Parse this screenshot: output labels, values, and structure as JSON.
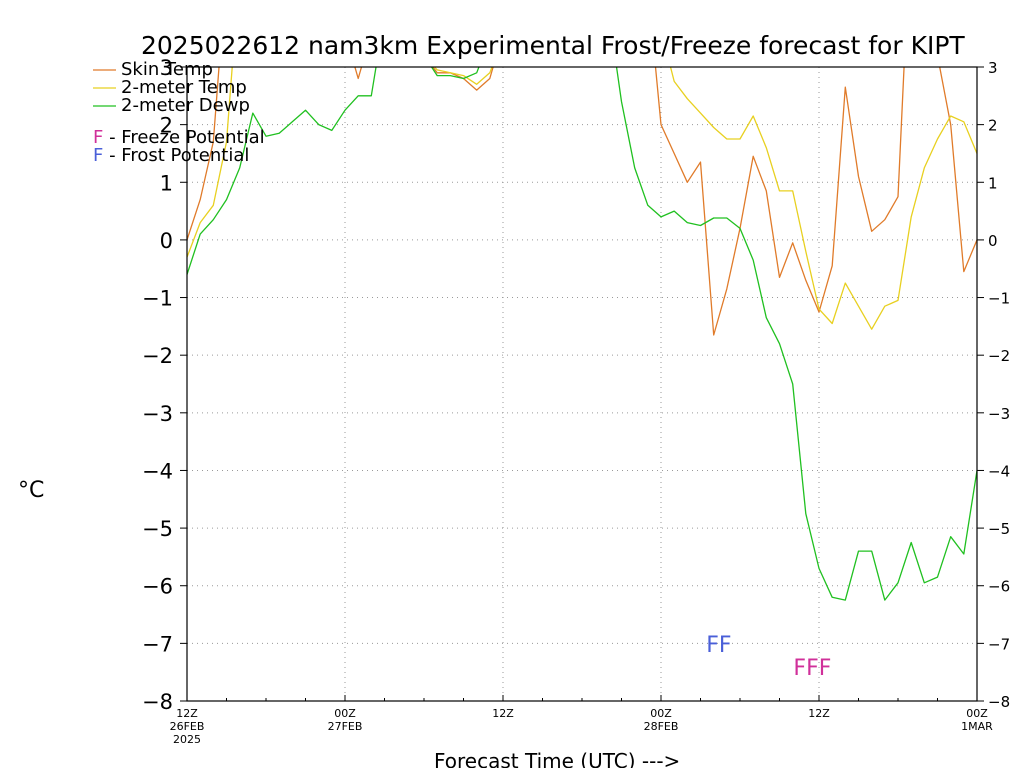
{
  "chart_data": {
    "type": "line",
    "title": "2025022612 nam3km Experimental Frost/Freeze forecast for KIPT",
    "xlabel": "Forecast Time (UTC) --->",
    "ylabel": "°C",
    "ylim": [
      -8,
      3
    ],
    "y_ticks": [
      -8,
      -7,
      -6,
      -5,
      -4,
      -3,
      -2,
      -1,
      0,
      1,
      2,
      3
    ],
    "y_tick_labels": [
      "−8",
      "−7",
      "−6",
      "−5",
      "−4",
      "−3",
      "−2",
      "−1",
      "0",
      "1",
      "2",
      "3"
    ],
    "xlim": [
      0,
      60
    ],
    "x_unit": "forecast hour",
    "x_ticks": [
      {
        "x": 0,
        "lines": [
          "12Z",
          "26FEB",
          "2025"
        ]
      },
      {
        "x": 12,
        "lines": [
          "00Z",
          "27FEB"
        ]
      },
      {
        "x": 24,
        "lines": [
          "12Z"
        ]
      },
      {
        "x": 36,
        "lines": [
          "00Z",
          "28FEB"
        ]
      },
      {
        "x": 48,
        "lines": [
          "12Z"
        ]
      },
      {
        "x": 60,
        "lines": [
          "00Z",
          "1MAR"
        ]
      }
    ],
    "grid": true,
    "legend_position": "top-left",
    "series": [
      {
        "name": "Skin Temp",
        "color": "#e07b2a",
        "points": [
          [
            0,
            0
          ],
          [
            1,
            0.7
          ],
          [
            2,
            1.7
          ],
          [
            2.5,
            3.2
          ],
          [
            12.5,
            3.2
          ],
          [
            13,
            2.8
          ],
          [
            13.5,
            3.2
          ],
          [
            18,
            3.2
          ],
          [
            19,
            2.9
          ],
          [
            20,
            2.9
          ],
          [
            21,
            2.8
          ],
          [
            22,
            2.6
          ],
          [
            23,
            2.8
          ],
          [
            23.5,
            3.2
          ],
          [
            35.5,
            3.2
          ],
          [
            36,
            2.0
          ],
          [
            37,
            1.5
          ],
          [
            38,
            1.0
          ],
          [
            39,
            1.35
          ],
          [
            40,
            -1.65
          ],
          [
            41,
            -0.85
          ],
          [
            42,
            0.2
          ],
          [
            43,
            1.45
          ],
          [
            44,
            0.85
          ],
          [
            45,
            -0.65
          ],
          [
            46,
            -0.05
          ],
          [
            47,
            -0.7
          ],
          [
            48,
            -1.25
          ],
          [
            49,
            -0.45
          ],
          [
            50,
            2.65
          ],
          [
            51,
            1.1
          ],
          [
            52,
            0.15
          ],
          [
            53,
            0.35
          ],
          [
            54,
            0.75
          ],
          [
            54.5,
            3.2
          ],
          [
            57,
            3.2
          ],
          [
            58,
            2.0
          ],
          [
            59,
            -0.55
          ],
          [
            60,
            0
          ]
        ]
      },
      {
        "name": "2-meter Temp",
        "color": "#e8d020",
        "points": [
          [
            0,
            -0.3
          ],
          [
            1,
            0.3
          ],
          [
            2,
            0.6
          ],
          [
            3,
            1.7
          ],
          [
            3.5,
            3.2
          ],
          [
            18,
            3.2
          ],
          [
            19,
            2.95
          ],
          [
            20,
            2.9
          ],
          [
            21,
            2.85
          ],
          [
            22,
            2.7
          ],
          [
            23,
            2.9
          ],
          [
            23.5,
            3.2
          ],
          [
            36.5,
            3.2
          ],
          [
            37,
            2.75
          ],
          [
            38,
            2.45
          ],
          [
            39,
            2.2
          ],
          [
            40,
            1.95
          ],
          [
            41,
            1.75
          ],
          [
            42,
            1.75
          ],
          [
            43,
            2.15
          ],
          [
            44,
            1.6
          ],
          [
            45,
            0.85
          ],
          [
            46,
            0.85
          ],
          [
            47,
            -0.2
          ],
          [
            48,
            -1.2
          ],
          [
            49,
            -1.45
          ],
          [
            50,
            -0.75
          ],
          [
            51,
            -1.15
          ],
          [
            52,
            -1.55
          ],
          [
            53,
            -1.15
          ],
          [
            54,
            -1.05
          ],
          [
            55,
            0.4
          ],
          [
            56,
            1.25
          ],
          [
            57,
            1.75
          ],
          [
            58,
            2.15
          ],
          [
            59,
            2.05
          ],
          [
            60,
            1.5
          ]
        ]
      },
      {
        "name": "2-meter Dewp",
        "color": "#20c020",
        "points": [
          [
            0,
            -0.6
          ],
          [
            1,
            0.1
          ],
          [
            2,
            0.35
          ],
          [
            3,
            0.7
          ],
          [
            4,
            1.25
          ],
          [
            5,
            2.2
          ],
          [
            6,
            1.8
          ],
          [
            7,
            1.85
          ],
          [
            8,
            2.05
          ],
          [
            9,
            2.25
          ],
          [
            10,
            2.0
          ],
          [
            11,
            1.9
          ],
          [
            12,
            2.25
          ],
          [
            13,
            2.5
          ],
          [
            14,
            2.5
          ],
          [
            14.5,
            3.2
          ],
          [
            18,
            3.2
          ],
          [
            19,
            2.85
          ],
          [
            20,
            2.85
          ],
          [
            21,
            2.8
          ],
          [
            22,
            2.9
          ],
          [
            22.5,
            3.2
          ],
          [
            32.5,
            3.2
          ],
          [
            33,
            2.4
          ],
          [
            34,
            1.25
          ],
          [
            35,
            0.6
          ],
          [
            36,
            0.4
          ],
          [
            37,
            0.5
          ],
          [
            38,
            0.3
          ],
          [
            39,
            0.25
          ],
          [
            40,
            0.38
          ],
          [
            41,
            0.38
          ],
          [
            42,
            0.2
          ],
          [
            43,
            -0.35
          ],
          [
            44,
            -1.35
          ],
          [
            45,
            -1.8
          ],
          [
            46,
            -2.5
          ],
          [
            47,
            -4.75
          ],
          [
            48,
            -5.7
          ],
          [
            49,
            -6.2
          ],
          [
            50,
            -6.25
          ],
          [
            51,
            -5.4
          ],
          [
            52,
            -5.4
          ],
          [
            53,
            -6.25
          ],
          [
            54,
            -5.95
          ],
          [
            55,
            -5.25
          ],
          [
            56,
            -5.95
          ],
          [
            57,
            -5.85
          ],
          [
            58,
            -5.15
          ],
          [
            59,
            -5.45
          ],
          [
            60,
            -4.0
          ]
        ]
      }
    ],
    "legend_extra": [
      {
        "symbol": "F",
        "symbol_color": "#d0309a",
        "label": " - Freeze Potential"
      },
      {
        "symbol": "F",
        "symbol_color": "#4a5fd8",
        "label": " - Frost Potential"
      }
    ],
    "markers": [
      {
        "kind": "frost",
        "text": "FF",
        "x": 40.4,
        "y": -7.15,
        "color": "#4a5fd8"
      },
      {
        "kind": "freeze",
        "text": "FFF",
        "x": 47.5,
        "y": -7.55,
        "color": "#d0309a"
      }
    ]
  }
}
